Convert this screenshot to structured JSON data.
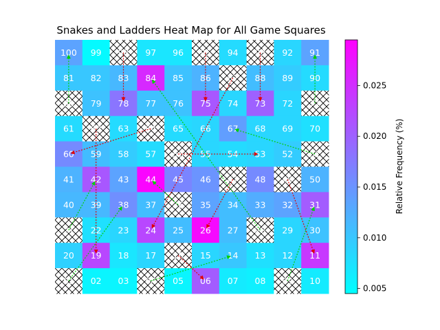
{
  "chart_data": {
    "type": "heatmap",
    "title": "Snakes and Ladders Heat Map for All Game Squares",
    "colorbar_label": "Relative Frequency (%)",
    "colorbar_ticks": [
      "0.005",
      "0.010",
      "0.015",
      "0.020",
      "0.025"
    ],
    "colorbar_range": [
      0.0045,
      0.0295
    ],
    "colormap": [
      "#00ffff",
      "#ff00ff"
    ],
    "grid": {
      "rows": 10,
      "cols": 10,
      "hatched_squares_are_snake_or_ladder_starts": true
    },
    "rows": [
      {
        "labels": [
          "100",
          "99",
          "98",
          "97",
          "96",
          "95",
          "94",
          "93",
          "92",
          "91"
        ],
        "values": [
          0.0135,
          0.005,
          null,
          0.007,
          0.007,
          null,
          0.008,
          null,
          0.0085,
          0.0135
        ],
        "hatched": [
          false,
          false,
          true,
          false,
          false,
          true,
          false,
          true,
          false,
          false
        ]
      },
      {
        "labels": [
          "81",
          "82",
          "83",
          "84",
          "85",
          "86",
          "87",
          "88",
          "89",
          "90"
        ],
        "values": [
          0.01,
          0.01,
          0.0115,
          0.0255,
          0.0105,
          0.012,
          null,
          0.011,
          0.0095,
          0.008
        ],
        "hatched": [
          false,
          false,
          false,
          false,
          false,
          false,
          true,
          false,
          false,
          false
        ]
      },
      {
        "labels": [
          "80",
          "79",
          "78",
          "77",
          "76",
          "75",
          "74",
          "73",
          "72",
          "71"
        ],
        "values": [
          null,
          0.0105,
          0.018,
          0.0105,
          0.0105,
          0.021,
          0.0085,
          0.02,
          0.0085,
          null
        ],
        "hatched": [
          true,
          false,
          false,
          false,
          false,
          false,
          false,
          false,
          false,
          true
        ]
      },
      {
        "labels": [
          "61",
          "62",
          "63",
          "64",
          "65",
          "66",
          "67",
          "68",
          "69",
          "70"
        ],
        "values": [
          0.008,
          null,
          0.008,
          null,
          0.008,
          0.0085,
          0.014,
          0.0085,
          0.0085,
          0.0075
        ],
        "hatched": [
          false,
          true,
          false,
          true,
          false,
          false,
          false,
          false,
          false,
          false
        ]
      },
      {
        "labels": [
          "60",
          "59",
          "58",
          "57",
          "56",
          "55",
          "54",
          "53",
          "52",
          "51"
        ],
        "values": [
          0.016,
          0.011,
          0.0095,
          0.008,
          null,
          0.0085,
          0.008,
          0.0085,
          0.0095,
          null
        ],
        "hatched": [
          false,
          false,
          false,
          false,
          true,
          false,
          false,
          false,
          false,
          true
        ]
      },
      {
        "labels": [
          "41",
          "42",
          "43",
          "44",
          "45",
          "46",
          "47",
          "48",
          "49",
          "50"
        ],
        "values": [
          0.012,
          0.021,
          0.0135,
          0.029,
          0.0165,
          0.015,
          null,
          0.016,
          null,
          0.012
        ],
        "hatched": [
          false,
          false,
          false,
          false,
          false,
          false,
          true,
          false,
          true,
          false
        ]
      },
      {
        "labels": [
          "40",
          "39",
          "38",
          "37",
          "36",
          "35",
          "34",
          "33",
          "32",
          "31"
        ],
        "values": [
          0.0115,
          0.0115,
          0.0155,
          0.011,
          null,
          0.0135,
          0.011,
          0.0125,
          0.0135,
          0.0205
        ],
        "hatched": [
          false,
          false,
          false,
          false,
          true,
          false,
          false,
          false,
          false,
          false
        ]
      },
      {
        "labels": [
          "21",
          "22",
          "23",
          "24",
          "25",
          "26",
          "27",
          "28",
          "29",
          "30"
        ],
        "values": [
          null,
          0.0075,
          0.0085,
          0.0225,
          0.011,
          0.0285,
          0.011,
          null,
          0.0085,
          0.0105
        ],
        "hatched": [
          true,
          false,
          false,
          false,
          false,
          false,
          false,
          true,
          false,
          false
        ]
      },
      {
        "labels": [
          "20",
          "19",
          "18",
          "17",
          "16",
          "15",
          "14",
          "13",
          "12",
          "11"
        ],
        "values": [
          0.009,
          0.0225,
          0.007,
          0.0085,
          null,
          0.0085,
          0.01,
          0.0075,
          0.0085,
          0.024
        ],
        "hatched": [
          false,
          false,
          false,
          false,
          true,
          false,
          false,
          false,
          false,
          false
        ]
      },
      {
        "labels": [
          "01",
          "02",
          "03",
          "04",
          "05",
          "06",
          "07",
          "08",
          "09",
          "10"
        ],
        "values": [
          null,
          0.0055,
          0.0055,
          null,
          0.0055,
          0.0205,
          0.0065,
          0.006,
          null,
          0.0065
        ],
        "hatched": [
          true,
          false,
          false,
          true,
          false,
          false,
          false,
          false,
          true,
          false
        ]
      }
    ],
    "ladders": [
      {
        "from": "01",
        "to": "38"
      },
      {
        "from": "04",
        "to": "14"
      },
      {
        "from": "09",
        "to": "31"
      },
      {
        "from": "21",
        "to": "42"
      },
      {
        "from": "28",
        "to": "84"
      },
      {
        "from": "36",
        "to": "44"
      },
      {
        "from": "51",
        "to": "67"
      },
      {
        "from": "71",
        "to": "91"
      },
      {
        "from": "80",
        "to": "100"
      }
    ],
    "snakes": [
      {
        "from": "16",
        "to": "06"
      },
      {
        "from": "47",
        "to": "26"
      },
      {
        "from": "49",
        "to": "11"
      },
      {
        "from": "56",
        "to": "53"
      },
      {
        "from": "62",
        "to": "19"
      },
      {
        "from": "64",
        "to": "60"
      },
      {
        "from": "87",
        "to": "24"
      },
      {
        "from": "93",
        "to": "73"
      },
      {
        "from": "95",
        "to": "75"
      },
      {
        "from": "98",
        "to": "78"
      }
    ],
    "ladder_color": "#00d000",
    "snake_color": "#e00000"
  }
}
